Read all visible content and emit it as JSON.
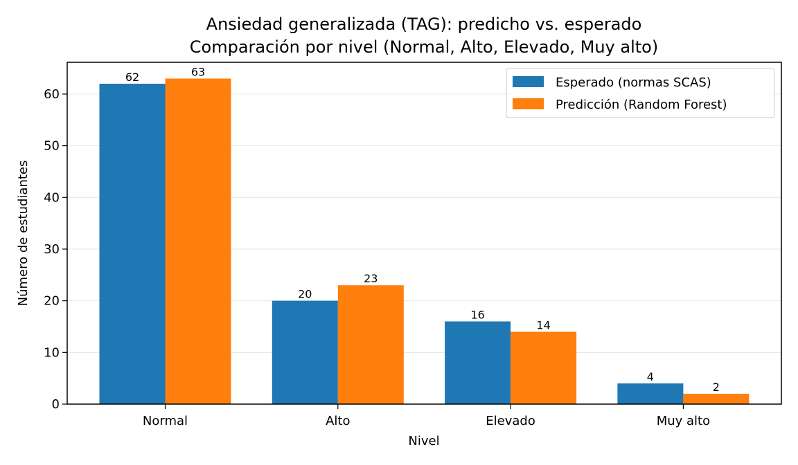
{
  "chart_data": {
    "type": "bar",
    "title": "Ansiedad generalizada (TAG): predicho vs. esperado",
    "subtitle": "Comparación por nivel (Normal, Alto, Elevado, Muy alto)",
    "xlabel": "Nivel",
    "ylabel": "Número de estudiantes",
    "categories": [
      "Normal",
      "Alto",
      "Elevado",
      "Muy alto"
    ],
    "series": [
      {
        "name": "Esperado (normas SCAS)",
        "values": [
          62,
          20,
          16,
          4
        ],
        "color": "#1f77b4"
      },
      {
        "name": "Predicción (Random Forest)",
        "values": [
          63,
          23,
          14,
          2
        ],
        "color": "#ff7f0e"
      }
    ],
    "ylim": [
      0,
      66.15
    ],
    "yticks": [
      0,
      10,
      20,
      30,
      40,
      50,
      60
    ],
    "grid": "horizontal",
    "legend_position": "top-right"
  }
}
